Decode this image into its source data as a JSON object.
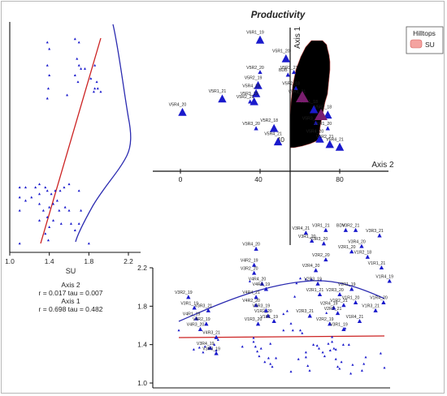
{
  "title": "Productivity",
  "legend": {
    "title": "Hilltops",
    "items": [
      {
        "label": "SU",
        "color": "#f4a3a0"
      }
    ]
  },
  "axes": {
    "axis1_label": "Axis 1",
    "axis2_label": "Axis 2",
    "axis1_tick": "40",
    "axis2_ticks": [
      "0",
      "40",
      "80"
    ]
  },
  "stats": {
    "axis2_label": "Axis 2",
    "axis2_line": "r = 0.017 tau = 0.007",
    "axis1_label": "Axis 1",
    "axis1_line": "r = 0.698 tau = 0.482"
  },
  "colors": {
    "marker": "#1a1acc",
    "hull": "#f4a3a0",
    "regression": "#cc2222",
    "density": "#2a2ab0",
    "centroid": "#7a1e6e"
  },
  "chart_data": [
    {
      "type": "scatter",
      "panel": "left",
      "xlabel": "SU",
      "xticks": [
        1.0,
        1.4,
        1.8,
        2.2
      ],
      "xlim": [
        1.0,
        2.2
      ],
      "points": [
        [
          1.38,
          55
        ],
        [
          1.4,
          53
        ],
        [
          1.38,
          48
        ],
        [
          1.4,
          45
        ],
        [
          1.39,
          41
        ],
        [
          1.38,
          38
        ],
        [
          1.66,
          56
        ],
        [
          1.7,
          55
        ],
        [
          1.68,
          50
        ],
        [
          1.7,
          48
        ],
        [
          1.72,
          47
        ],
        [
          1.66,
          45
        ],
        [
          1.69,
          43
        ],
        [
          1.76,
          47
        ],
        [
          1.82,
          44
        ],
        [
          1.86,
          48
        ],
        [
          1.88,
          43
        ],
        [
          1.86,
          41
        ],
        [
          1.89,
          41
        ],
        [
          1.85,
          40
        ],
        [
          1.92,
          40
        ],
        [
          1.58,
          39
        ],
        [
          1.1,
          11
        ],
        [
          1.16,
          11
        ],
        [
          1.26,
          11
        ],
        [
          1.3,
          12
        ],
        [
          1.36,
          11
        ],
        [
          1.38,
          10
        ],
        [
          1.42,
          9
        ],
        [
          1.46,
          10
        ],
        [
          1.51,
          10
        ],
        [
          1.55,
          11
        ],
        [
          1.6,
          12
        ],
        [
          1.7,
          10
        ],
        [
          1.1,
          8
        ],
        [
          1.16,
          7
        ],
        [
          1.22,
          8
        ],
        [
          1.3,
          6
        ],
        [
          1.34,
          4
        ],
        [
          1.4,
          5
        ],
        [
          1.44,
          6
        ],
        [
          1.5,
          4
        ],
        [
          1.56,
          5
        ],
        [
          1.6,
          4
        ],
        [
          1.72,
          4
        ],
        [
          1.3,
          1
        ],
        [
          1.38,
          2
        ],
        [
          1.4,
          -1
        ],
        [
          1.44,
          1
        ],
        [
          1.52,
          0
        ],
        [
          1.62,
          0
        ],
        [
          1.7,
          0
        ],
        [
          1.1,
          4
        ],
        [
          1.3,
          9
        ],
        [
          1.48,
          7
        ],
        [
          1.66,
          -2
        ],
        [
          1.8,
          -6
        ],
        [
          1.1,
          -6
        ],
        [
          1.36,
          -3
        ],
        [
          1.39,
          -5
        ]
      ]
    },
    {
      "type": "scatter",
      "panel": "ordination",
      "xlabel": "Axis 2",
      "ylabel": "Axis 1",
      "xticks": [
        0,
        40,
        80
      ],
      "yticks": [
        40
      ],
      "points": [
        {
          "label": "V6R1_19",
          "x": 40,
          "y": 89,
          "size": "large"
        },
        {
          "label": "V5R1_20",
          "x": 53,
          "y": 82,
          "size": "large"
        },
        {
          "label": "V5R2_20",
          "x": 40,
          "y": 77,
          "size": "small"
        },
        {
          "label": "V5R2_19",
          "x": 39,
          "y": 72,
          "size": "large"
        },
        {
          "label": "V5R4_19",
          "x": 38,
          "y": 69,
          "size": "large"
        },
        {
          "label": "V5R3_19",
          "x": 37,
          "y": 66,
          "size": "large"
        },
        {
          "label": "V5R1_21",
          "x": 21,
          "y": 67,
          "size": "large"
        },
        {
          "label": "V5R2_21",
          "x": 35,
          "y": 66,
          "size": "small"
        },
        {
          "label": "V5R4_20",
          "x": 1,
          "y": 62,
          "size": "large"
        },
        {
          "label": "V5R3_20",
          "x": 38,
          "y": 56,
          "size": "small"
        },
        {
          "label": "V5R2_18",
          "x": 47,
          "y": 56,
          "size": "large"
        },
        {
          "label": "V5R4_21",
          "x": 49,
          "y": 51,
          "size": "large"
        },
        {
          "label": "BDB",
          "x": 54,
          "y": 76,
          "size": "small"
        },
        {
          "label": "V5R3_21",
          "x": 57,
          "y": 77,
          "size": "small"
        },
        {
          "label": "V5R2_18",
          "x": 58,
          "y": 71,
          "size": "small"
        },
        {
          "label": "V5R1_21",
          "x": 61,
          "y": 68,
          "size": "small"
        },
        {
          "label": "V5R1_18",
          "x": 67,
          "y": 63,
          "size": "large"
        },
        {
          "label": "V5R2_18",
          "x": 74,
          "y": 61,
          "size": "large"
        },
        {
          "label": "V5R3_21",
          "x": 68,
          "y": 58,
          "size": "small"
        },
        {
          "label": "V5R1_20",
          "x": 74,
          "y": 56,
          "size": "small"
        },
        {
          "label": "V5R4_20",
          "x": 70,
          "y": 52,
          "size": "large"
        },
        {
          "label": "V5R2_21",
          "x": 75,
          "y": 50,
          "size": "large"
        },
        {
          "label": "V5R4_21",
          "x": 80,
          "y": 49,
          "size": "large"
        },
        {
          "label": "V3R4_20",
          "x": 38,
          "y": 11,
          "size": "small"
        },
        {
          "label": "V4R2_19",
          "x": 37,
          "y": 5,
          "size": "small"
        },
        {
          "label": "V3R2_20",
          "x": 37,
          "y": 2,
          "size": "small"
        },
        {
          "label": "V4R4_20",
          "x": 41,
          "y": -2,
          "size": "small"
        },
        {
          "label": "V4R3_19",
          "x": 43,
          "y": -4,
          "size": "small"
        },
        {
          "label": "V4R4_21",
          "x": 38,
          "y": -7,
          "size": "small"
        },
        {
          "label": "V4R2_20",
          "x": 38,
          "y": -10,
          "size": "small"
        },
        {
          "label": "V1R3_19",
          "x": 43,
          "y": -12,
          "size": "small"
        },
        {
          "label": "V1R2_20",
          "x": 44,
          "y": -14,
          "size": "small"
        },
        {
          "label": "V1R1_19",
          "x": 47,
          "y": -16,
          "size": "small"
        },
        {
          "label": "V1R3_20",
          "x": 39,
          "y": -17,
          "size": "small"
        },
        {
          "label": "V3R3_21",
          "x": 14,
          "y": -12,
          "size": "small"
        },
        {
          "label": "V3R2_19",
          "x": 4,
          "y": -7,
          "size": "small"
        },
        {
          "label": "V3R1_19",
          "x": 7,
          "y": -11,
          "size": "small"
        },
        {
          "label": "V4R1_19",
          "x": 8,
          "y": -15,
          "size": "small"
        },
        {
          "label": "V4R2_19",
          "x": 13,
          "y": -17,
          "size": "small"
        },
        {
          "label": "V4R3_20",
          "x": 10,
          "y": -19,
          "size": "small"
        },
        {
          "label": "V4R3_21",
          "x": 18,
          "y": -22,
          "size": "small"
        },
        {
          "label": "V3R4_19",
          "x": 15,
          "y": -26,
          "size": "small"
        },
        {
          "label": "V3R3_19",
          "x": 18,
          "y": -28,
          "size": "small"
        },
        {
          "label": "V3R4_21",
          "x": 63,
          "y": 17,
          "size": "small"
        },
        {
          "label": "V3R1_20",
          "x": 66,
          "y": 14,
          "size": "small"
        },
        {
          "label": "V3R1_21",
          "x": 73,
          "y": 18,
          "size": "small"
        },
        {
          "label": "V3R3_20",
          "x": 72,
          "y": 13,
          "size": "small"
        },
        {
          "label": "V2R2_20",
          "x": 73,
          "y": 7,
          "size": "small"
        },
        {
          "label": "V2R4_20",
          "x": 68,
          "y": 3,
          "size": "small"
        },
        {
          "label": "V2R3_19",
          "x": 69,
          "y": -2,
          "size": "small"
        },
        {
          "label": "V2R1_21",
          "x": 70,
          "y": -6,
          "size": "small"
        },
        {
          "label": "V2R3_20",
          "x": 80,
          "y": -6,
          "size": "small"
        },
        {
          "label": "V2R4_19",
          "x": 77,
          "y": -11,
          "size": "small"
        },
        {
          "label": "V2R2_21",
          "x": 79,
          "y": -13,
          "size": "small"
        },
        {
          "label": "V2R3_21",
          "x": 65,
          "y": -14,
          "size": "small"
        },
        {
          "label": "V2R2_19",
          "x": 75,
          "y": -17,
          "size": "small"
        },
        {
          "label": "V3R1_19",
          "x": 82,
          "y": -19,
          "size": "small"
        },
        {
          "label": "V1R2_21",
          "x": 82,
          "y": -10,
          "size": "small"
        },
        {
          "label": "V2R1_19",
          "x": 86,
          "y": -4,
          "size": "small"
        },
        {
          "label": "V1R1_20",
          "x": 88,
          "y": -9,
          "size": "small"
        },
        {
          "label": "V1R4_21",
          "x": 90,
          "y": -16,
          "size": "small"
        },
        {
          "label": "V1R3_21",
          "x": 98,
          "y": -12,
          "size": "small"
        },
        {
          "label": "V1R4_20",
          "x": 102,
          "y": -9,
          "size": "small"
        },
        {
          "label": "V1R4_19",
          "x": 105,
          "y": -1,
          "size": "small"
        },
        {
          "label": "V1R1_21",
          "x": 101,
          "y": 4,
          "size": "small"
        },
        {
          "label": "V3R3_21",
          "x": 100,
          "y": 16,
          "size": "small"
        },
        {
          "label": "V3R2_21",
          "x": 88,
          "y": 18,
          "size": "small"
        },
        {
          "label": "V3R4_20",
          "x": 91,
          "y": 12,
          "size": "small"
        },
        {
          "label": "BDV",
          "x": 83,
          "y": 18,
          "size": "small"
        },
        {
          "label": "V1R2_18",
          "x": 94,
          "y": 8,
          "size": "small"
        },
        {
          "label": "V2R1_20",
          "x": 86,
          "y": 10,
          "size": "small"
        }
      ]
    },
    {
      "type": "scatter",
      "panel": "bottom",
      "yticks": [
        1.0,
        1.4,
        1.8,
        2.2
      ],
      "ylim": [
        1.0,
        2.2
      ],
      "points": [
        [
          -2,
          1.55
        ],
        [
          6,
          1.35
        ],
        [
          9,
          1.37
        ],
        [
          11,
          1.32
        ],
        [
          12,
          1.38
        ],
        [
          14,
          1.36
        ],
        [
          17,
          1.4
        ],
        [
          18,
          1.34
        ],
        [
          19,
          1.45
        ],
        [
          32,
          1.38
        ],
        [
          38,
          1.47
        ],
        [
          38,
          1.43
        ],
        [
          39,
          1.38
        ],
        [
          40,
          1.33
        ],
        [
          41,
          1.28
        ],
        [
          42,
          1.36
        ],
        [
          44,
          1.22
        ],
        [
          46,
          1.26
        ],
        [
          47,
          1.2
        ],
        [
          48,
          1.17
        ],
        [
          50,
          1.26
        ],
        [
          54,
          1.72
        ],
        [
          56,
          1.75
        ],
        [
          58,
          1.62
        ],
        [
          59,
          1.55
        ],
        [
          60,
          1.9
        ],
        [
          61,
          2.04
        ],
        [
          63,
          1.55
        ],
        [
          64,
          1.52
        ],
        [
          66,
          1.32
        ],
        [
          66,
          1.27
        ],
        [
          67,
          1.18
        ],
        [
          68,
          1.13
        ],
        [
          70,
          1.4
        ],
        [
          72,
          1.39
        ],
        [
          73,
          1.36
        ],
        [
          75,
          1.32
        ],
        [
          76,
          1.28
        ],
        [
          77,
          1.73
        ],
        [
          78,
          1.41
        ],
        [
          79,
          1.34
        ],
        [
          80,
          1.48
        ],
        [
          80,
          1.43
        ],
        [
          81,
          1.36
        ],
        [
          82,
          1.25
        ],
        [
          83,
          1.17
        ],
        [
          84,
          1.15
        ],
        [
          85,
          1.22
        ],
        [
          86,
          1.4
        ],
        [
          87,
          1.57
        ],
        [
          89,
          1.4
        ],
        [
          91,
          1.19
        ],
        [
          96,
          1.13
        ],
        [
          97,
          1.2
        ],
        [
          98,
          1.27
        ],
        [
          106,
          1.31
        ],
        [
          108,
          1.16
        ],
        [
          36,
          2.06
        ],
        [
          63,
          2.09
        ],
        [
          66,
          2.08
        ],
        [
          69,
          2.08
        ],
        [
          74,
          2.07
        ],
        [
          54,
          1.55
        ],
        [
          62,
          1.25
        ],
        [
          82,
          1.35
        ],
        [
          90,
          1.1
        ],
        [
          47,
          1.41
        ],
        [
          58,
          1.12
        ]
      ]
    }
  ]
}
